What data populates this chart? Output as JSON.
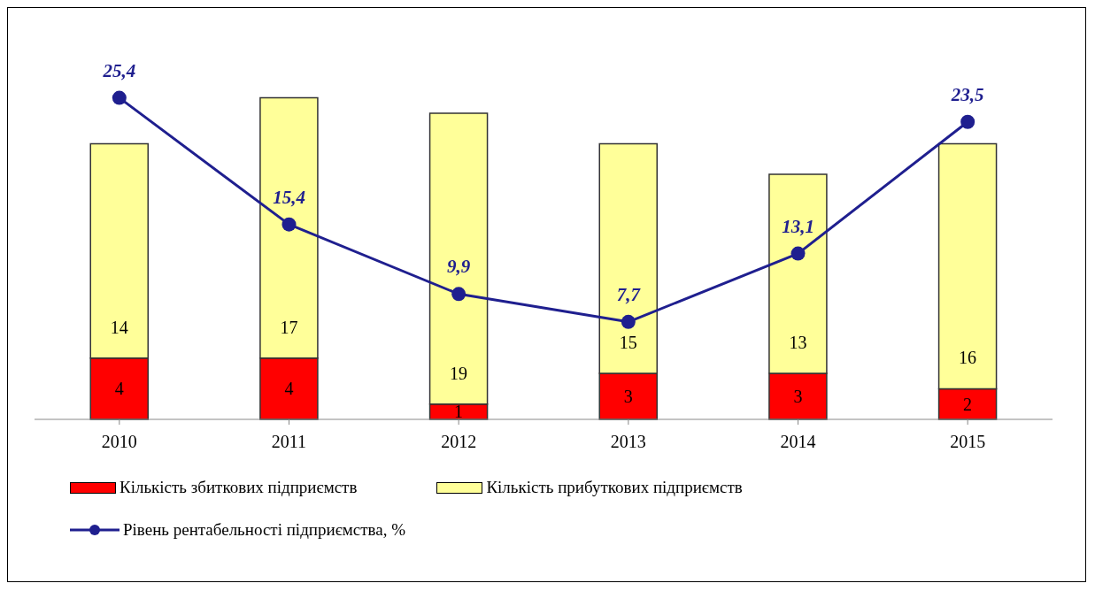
{
  "chart_data": {
    "type": "bar",
    "stacked": true,
    "categories": [
      "2010",
      "2011",
      "2012",
      "2013",
      "2014",
      "2015"
    ],
    "series": [
      {
        "name": "Кількість збиткових підприємств",
        "color": "#ff0000",
        "values": [
          4,
          4,
          1,
          3,
          3,
          2
        ],
        "value_labels": [
          "4",
          "4",
          "1",
          "3",
          "3",
          "2"
        ]
      },
      {
        "name": "Кількість прибуткових підприємств",
        "color": "#ffff99",
        "values": [
          14,
          17,
          19,
          15,
          13,
          16
        ],
        "value_labels": [
          "14",
          "17",
          "19",
          "15",
          "13",
          "16"
        ]
      },
      {
        "name": "Рівень рентабельності підприємства, %",
        "type": "line",
        "axis": "y2",
        "color": "#1f1f8f",
        "marker": "circle",
        "values": [
          25.4,
          15.4,
          9.9,
          7.7,
          13.1,
          23.5
        ],
        "value_labels": [
          "25,4",
          "15,4",
          "9,9",
          "7,7",
          "13,1",
          "23,5"
        ]
      }
    ],
    "legend": "bottom",
    "grid": false
  }
}
